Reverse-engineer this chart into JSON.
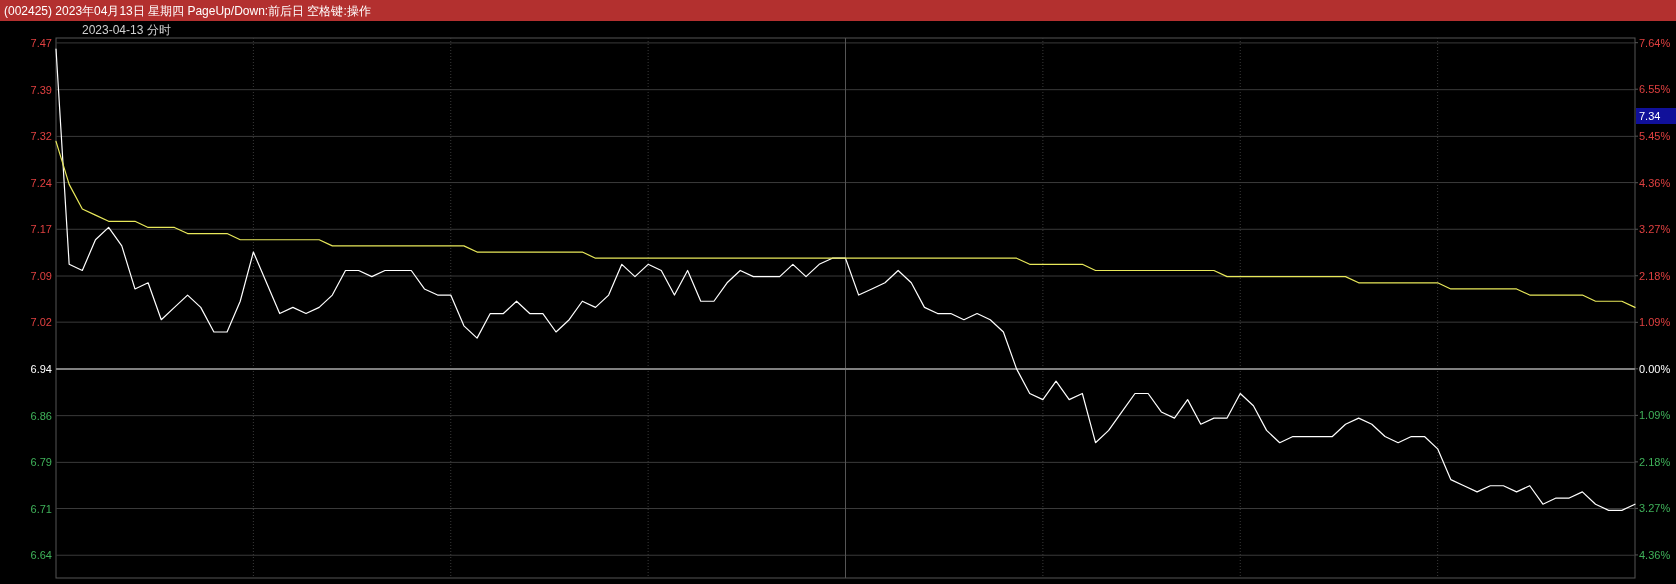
{
  "chart_data": {
    "type": "line",
    "title": "(002425) 2023年04月13日 星期四 PageUp/Down:前后日 空格键:操作",
    "subtitle": "2023-04-13 分时",
    "categories": [
      null,
      null,
      null,
      null,
      null,
      null,
      null,
      null,
      null,
      null,
      null,
      null,
      null,
      null,
      null,
      null,
      null,
      null,
      null,
      null,
      null,
      null,
      null,
      null,
      null,
      null,
      null,
      null,
      null,
      null,
      null,
      null,
      null,
      null,
      null,
      null,
      null,
      null,
      null,
      null,
      null,
      null,
      null,
      null,
      null,
      null,
      null,
      null,
      null,
      null,
      null,
      null,
      null,
      null,
      null,
      null,
      null,
      null,
      null,
      null,
      null,
      null,
      null,
      null,
      null,
      null,
      null,
      null,
      null,
      null,
      null,
      null,
      null,
      null,
      null,
      null,
      null,
      null,
      null,
      null,
      null,
      null,
      null,
      null,
      null,
      null,
      null,
      null,
      null,
      null,
      null,
      null,
      null,
      null,
      null,
      null,
      null,
      null,
      null,
      null,
      null,
      null,
      null,
      null,
      null,
      null,
      null,
      null,
      null,
      null,
      null,
      null,
      null,
      null,
      null,
      null,
      null,
      null,
      null,
      null,
      null
    ],
    "series": [
      {
        "color": "#ffffff",
        "values": [
          7.46,
          7.11,
          7.1,
          7.15,
          7.17,
          7.14,
          7.07,
          7.08,
          7.02,
          7.04,
          7.06,
          7.04,
          7.0,
          7.0,
          7.05,
          7.13,
          7.08,
          7.03,
          7.04,
          7.03,
          7.04,
          7.06,
          7.1,
          7.1,
          7.09,
          7.1,
          7.1,
          7.1,
          7.07,
          7.06,
          7.06,
          7.01,
          6.99,
          7.03,
          7.03,
          7.05,
          7.03,
          7.03,
          7.0,
          7.02,
          7.05,
          7.04,
          7.06,
          7.11,
          7.09,
          7.11,
          7.1,
          7.06,
          7.1,
          7.05,
          7.05,
          7.08,
          7.1,
          7.09,
          7.09,
          7.09,
          7.11,
          7.09,
          7.11,
          7.12,
          7.12,
          7.06,
          7.07,
          7.08,
          7.1,
          7.08,
          7.04,
          7.03,
          7.03,
          7.02,
          7.03,
          7.02,
          7.0,
          6.94,
          6.9,
          6.89,
          6.92,
          6.89,
          6.9,
          6.82,
          6.84,
          6.87,
          6.9,
          6.9,
          6.87,
          6.86,
          6.89,
          6.85,
          6.86,
          6.86,
          6.9,
          6.88,
          6.84,
          6.82,
          6.83,
          6.83,
          6.83,
          6.83,
          6.85,
          6.86,
          6.85,
          6.83,
          6.82,
          6.83,
          6.83,
          6.81,
          6.76,
          6.75,
          6.74,
          6.75,
          6.75,
          6.74,
          6.75,
          6.72,
          6.73,
          6.73,
          6.74,
          6.72,
          6.71,
          6.71,
          6.72
        ]
      },
      {
        "color": "#e8e85a",
        "values": [
          7.31,
          7.24,
          7.2,
          7.19,
          7.18,
          7.18,
          7.18,
          7.17,
          7.17,
          7.17,
          7.16,
          7.16,
          7.16,
          7.16,
          7.15,
          7.15,
          7.15,
          7.15,
          7.15,
          7.15,
          7.15,
          7.14,
          7.14,
          7.14,
          7.14,
          7.14,
          7.14,
          7.14,
          7.14,
          7.14,
          7.14,
          7.14,
          7.13,
          7.13,
          7.13,
          7.13,
          7.13,
          7.13,
          7.13,
          7.13,
          7.13,
          7.12,
          7.12,
          7.12,
          7.12,
          7.12,
          7.12,
          7.12,
          7.12,
          7.12,
          7.12,
          7.12,
          7.12,
          7.12,
          7.12,
          7.12,
          7.12,
          7.12,
          7.12,
          7.12,
          7.12,
          7.12,
          7.12,
          7.12,
          7.12,
          7.12,
          7.12,
          7.12,
          7.12,
          7.12,
          7.12,
          7.12,
          7.12,
          7.12,
          7.11,
          7.11,
          7.11,
          7.11,
          7.11,
          7.1,
          7.1,
          7.1,
          7.1,
          7.1,
          7.1,
          7.1,
          7.1,
          7.1,
          7.1,
          7.09,
          7.09,
          7.09,
          7.09,
          7.09,
          7.09,
          7.09,
          7.09,
          7.09,
          7.09,
          7.08,
          7.08,
          7.08,
          7.08,
          7.08,
          7.08,
          7.08,
          7.07,
          7.07,
          7.07,
          7.07,
          7.07,
          7.07,
          7.06,
          7.06,
          7.06,
          7.06,
          7.06,
          7.05,
          7.05,
          7.05,
          7.04
        ]
      }
    ],
    "ylim": [
      6.6,
      7.478
    ],
    "yticks": [
      {
        "value": 7.47,
        "label": "7.47"
      },
      {
        "value": 7.394,
        "label": "7.39"
      },
      {
        "value": 7.318,
        "label": "7.32"
      },
      {
        "value": 7.243,
        "label": "7.24"
      },
      {
        "value": 7.167,
        "label": "7.17"
      },
      {
        "value": 7.091,
        "label": "7.09"
      },
      {
        "value": 7.016,
        "label": "7.02"
      },
      {
        "value": 6.94,
        "label": "6.94"
      },
      {
        "value": 6.864,
        "label": "6.86"
      },
      {
        "value": 6.788,
        "label": "6.79"
      },
      {
        "value": 6.713,
        "label": "6.71"
      },
      {
        "value": 6.637,
        "label": "6.64"
      }
    ],
    "y2lim": [
      -4.9,
      7.75
    ],
    "y2ticks": [
      {
        "value": 7.64,
        "label": "7.64%"
      },
      {
        "value": 6.55,
        "label": "6.55%"
      },
      {
        "value": 5.45,
        "label": "5.45%"
      },
      {
        "value": 4.36,
        "label": "4.36%"
      },
      {
        "value": 3.27,
        "label": "3.27%"
      },
      {
        "value": 2.18,
        "label": "2.18%"
      },
      {
        "value": 1.09,
        "label": "1.09%"
      },
      {
        "value": 0,
        "label": "0.00%"
      },
      {
        "value": -1.09,
        "label": "1.09%"
      },
      {
        "value": -2.18,
        "label": "2.18%"
      },
      {
        "value": -3.27,
        "label": "3.27%"
      },
      {
        "value": -4.36,
        "label": "4.36%"
      }
    ],
    "ref_lines": [
      {
        "axis": "y",
        "value": 6.94,
        "label": null,
        "color": "#808080"
      }
    ],
    "annotations": [
      "7.34"
    ],
    "grid": true,
    "marker": "none",
    "line_style": "solid"
  }
}
